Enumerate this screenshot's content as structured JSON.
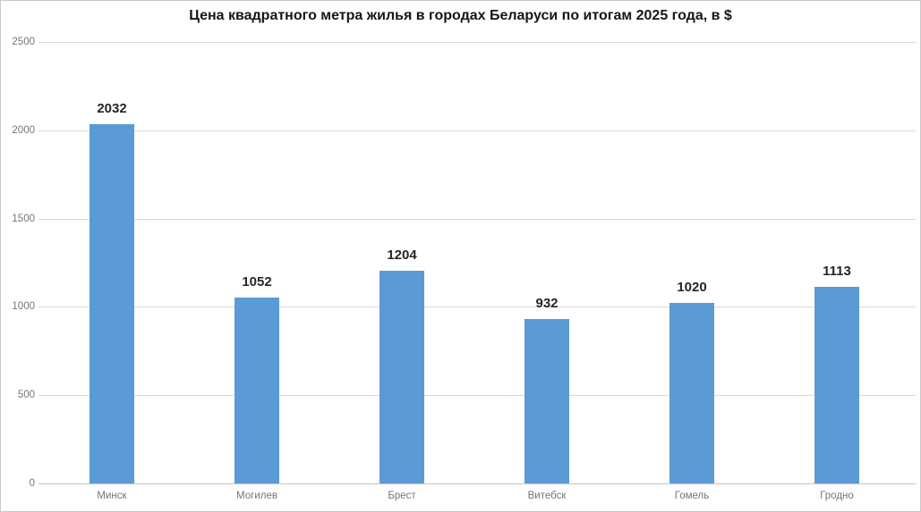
{
  "chart_data": {
    "type": "bar",
    "title": "Цена квадратного метра жилья в городах Беларуси по итогам 2025 года, в $",
    "categories": [
      "Минск",
      "Могилев",
      "Брест",
      "Витебск",
      "Гомель",
      "Гродно"
    ],
    "values": [
      2032,
      1052,
      1204,
      932,
      1020,
      1113
    ],
    "xlabel": "",
    "ylabel": "",
    "ylim": [
      0,
      2500
    ],
    "yticks": [
      0,
      500,
      1000,
      1500,
      2000,
      2500
    ],
    "grid": true,
    "legend": "none",
    "colors": {
      "bar": "#5b9bd5",
      "title_text": "#161616",
      "value_label_text": "#262626",
      "axis_tick_text": "#757575",
      "gridline": "#d9d9d9"
    }
  }
}
